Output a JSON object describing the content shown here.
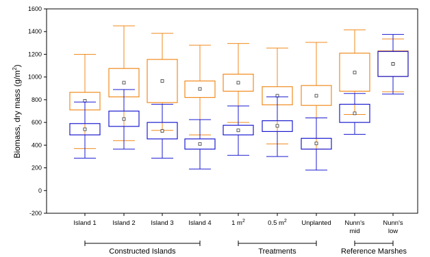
{
  "chart_data": {
    "type": "box",
    "ylabel_main": "Biomass, dry mass (g/m",
    "ylabel_sup": "2",
    "ylabel_end": ")",
    "ylim": [
      -200,
      1600
    ],
    "yticks": [
      -200,
      0,
      200,
      400,
      600,
      800,
      1000,
      1200,
      1400,
      1600
    ],
    "grid": false,
    "categories": [
      {
        "lines": [
          "Island 1"
        ]
      },
      {
        "lines": [
          "Island 2"
        ]
      },
      {
        "lines": [
          "Island 3"
        ]
      },
      {
        "lines": [
          "Island 4"
        ]
      },
      {
        "lines": [
          "1 m"
        ],
        "sup": "2"
      },
      {
        "lines": [
          "0.5 m"
        ],
        "sup": "2"
      },
      {
        "lines": [
          "Unplanted"
        ]
      },
      {
        "lines": [
          "Nunn's",
          "mid"
        ]
      },
      {
        "lines": [
          "Nunn's",
          "low"
        ]
      }
    ],
    "groups": [
      {
        "label": "Constructed Islands",
        "from": 0,
        "to": 3
      },
      {
        "label": "Treatments",
        "from": 4,
        "to": 6
      },
      {
        "label": "Reference Marshes",
        "from": 7,
        "to": 8
      }
    ],
    "series": [
      {
        "color": "#f08a1c",
        "boxes": [
          {
            "min": 370,
            "q1": 710,
            "mean": 790,
            "q3": 865,
            "max": 1200
          },
          {
            "min": 440,
            "q1": 825,
            "mean": 950,
            "q3": 1075,
            "max": 1450
          },
          {
            "min": 530,
            "q1": 775,
            "mean": 965,
            "q3": 1155,
            "max": 1385
          },
          {
            "min": 490,
            "q1": 820,
            "mean": 895,
            "q3": 965,
            "max": 1280
          },
          {
            "min": 600,
            "q1": 875,
            "mean": 950,
            "q3": 1025,
            "max": 1295
          },
          {
            "min": 410,
            "q1": 755,
            "mean": 835,
            "q3": 915,
            "max": 1255
          },
          {
            "min": 365,
            "q1": 750,
            "mean": 835,
            "q3": 925,
            "max": 1305
          },
          {
            "min": 670,
            "q1": 875,
            "mean": 1040,
            "q3": 1210,
            "max": 1415
          },
          {
            "min": 870,
            "q1": 1005,
            "mean": 1115,
            "q3": 1230,
            "max": 1335
          }
        ]
      },
      {
        "color": "#1a1ad0",
        "boxes": [
          {
            "min": 285,
            "q1": 490,
            "mean": 540,
            "q3": 590,
            "max": 780
          },
          {
            "min": 365,
            "q1": 565,
            "mean": 630,
            "q3": 700,
            "max": 890
          },
          {
            "min": 285,
            "q1": 455,
            "mean": 525,
            "q3": 600,
            "max": 760
          },
          {
            "min": 190,
            "q1": 365,
            "mean": 410,
            "q3": 455,
            "max": 625
          },
          {
            "min": 310,
            "q1": 490,
            "mean": 530,
            "q3": 575,
            "max": 745
          },
          {
            "min": 300,
            "q1": 520,
            "mean": 570,
            "q3": 615,
            "max": 825
          },
          {
            "min": 180,
            "q1": 365,
            "mean": 415,
            "q3": 460,
            "max": 640
          },
          {
            "min": 495,
            "q1": 600,
            "mean": 680,
            "q3": 760,
            "max": 855
          },
          {
            "min": 850,
            "q1": 1005,
            "mean": 1115,
            "q3": 1225,
            "max": 1375
          }
        ]
      }
    ]
  }
}
